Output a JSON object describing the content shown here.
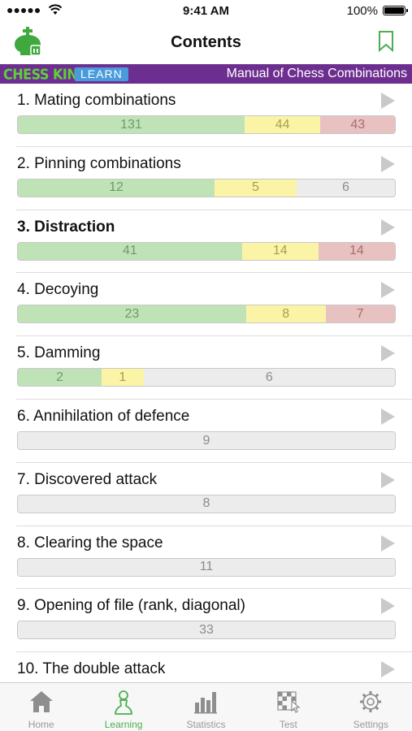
{
  "status_bar": {
    "signal": "●●●●●",
    "time": "9:41 AM",
    "battery": "100%"
  },
  "nav": {
    "title": "Contents",
    "logo_icon": "chess-king-logo-icon",
    "bookmark_icon": "bookmark-icon",
    "accent": "#4caf50"
  },
  "banner": {
    "brand": "CHESS KING",
    "learn": "LEARN",
    "book_title": "Manual of Chess Combinations",
    "background": "#6d2f8f"
  },
  "chapters": [
    {
      "label": "1. Mating combinations",
      "bold": false,
      "green": 131,
      "yellow": 44,
      "red": 43,
      "gray": 0
    },
    {
      "label": "2. Pinning combinations",
      "bold": false,
      "green": 12,
      "yellow": 5,
      "red": 0,
      "gray": 6
    },
    {
      "label": "3. Distraction",
      "bold": true,
      "green": 41,
      "yellow": 14,
      "red": 14,
      "gray": 0
    },
    {
      "label": "4. Decoying",
      "bold": false,
      "green": 23,
      "yellow": 8,
      "red": 7,
      "gray": 0
    },
    {
      "label": "5. Damming",
      "bold": false,
      "green": 2,
      "yellow": 1,
      "red": 0,
      "gray": 6
    },
    {
      "label": "6. Annihilation of defence",
      "bold": false,
      "green": 0,
      "yellow": 0,
      "red": 0,
      "gray": 9
    },
    {
      "label": "7. Discovered attack",
      "bold": false,
      "green": 0,
      "yellow": 0,
      "red": 0,
      "gray": 8
    },
    {
      "label": "8. Clearing the space",
      "bold": false,
      "green": 0,
      "yellow": 0,
      "red": 0,
      "gray": 11
    },
    {
      "label": "9. Opening of file (rank, diagonal)",
      "bold": false,
      "green": 0,
      "yellow": 0,
      "red": 0,
      "gray": 33
    },
    {
      "label": "10. The double attack",
      "bold": false,
      "green": 0,
      "yellow": 0,
      "red": 0,
      "gray": 0
    }
  ],
  "tabs": [
    {
      "label": "Home",
      "icon": "home-icon",
      "active": false
    },
    {
      "label": "Learning",
      "icon": "pawn-icon",
      "active": true
    },
    {
      "label": "Statistics",
      "icon": "bar-chart-icon",
      "active": false
    },
    {
      "label": "Test",
      "icon": "chessboard-test-icon",
      "active": false
    },
    {
      "label": "Settings",
      "icon": "gear-icon",
      "active": false
    }
  ]
}
